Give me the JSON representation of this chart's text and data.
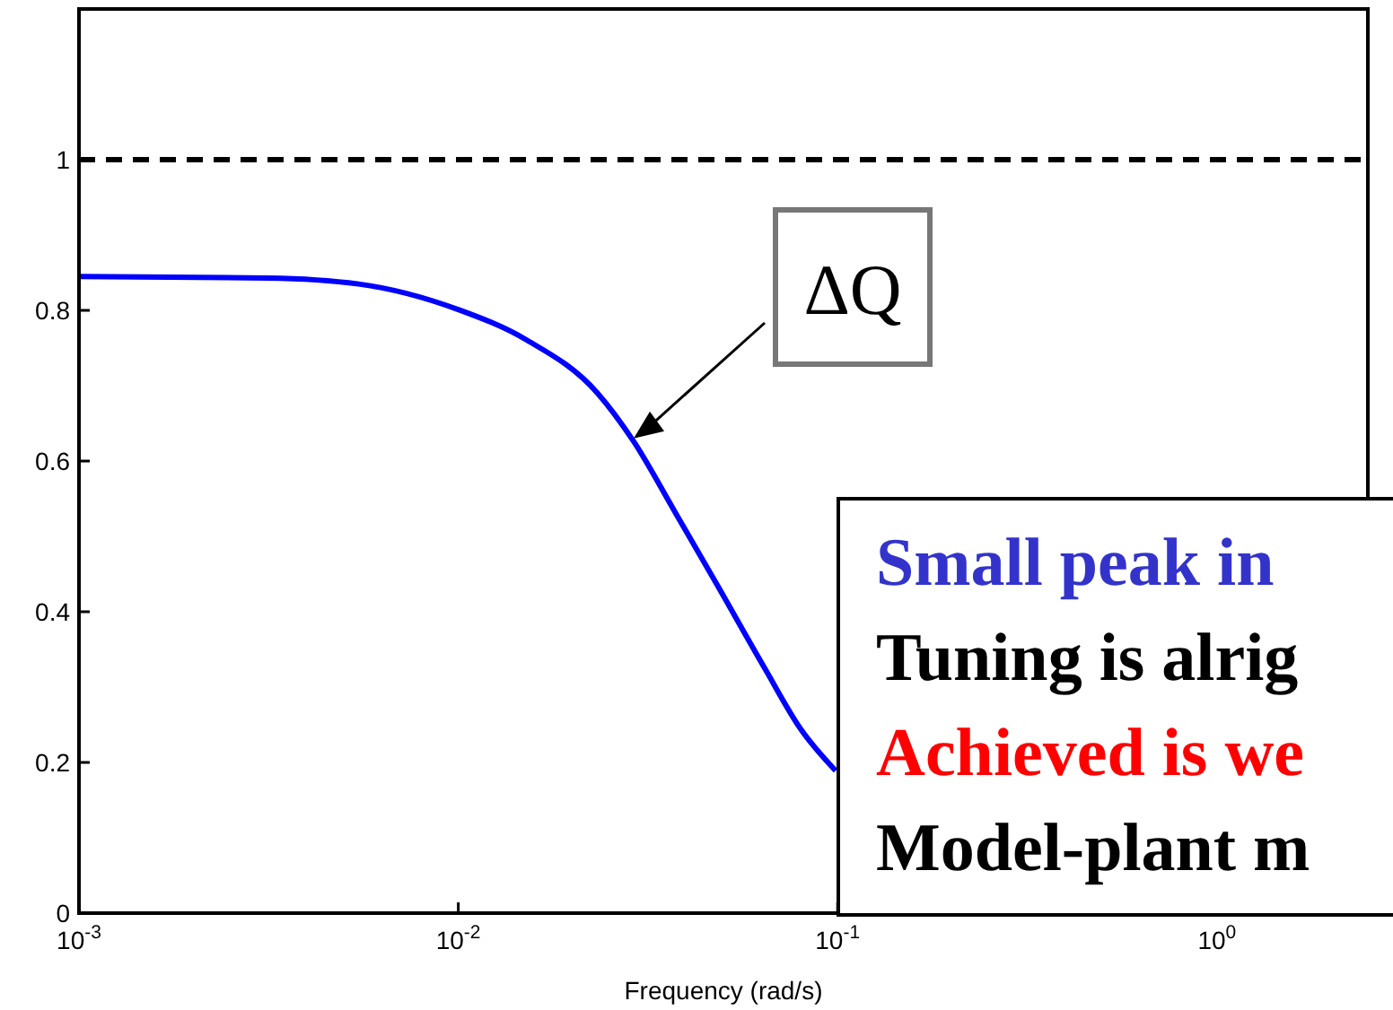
{
  "chart_data": {
    "type": "line",
    "xlabel": "Frequency (rad/s)",
    "log": "x",
    "xlim": [
      0.001,
      2.5
    ],
    "xticks": [
      {
        "value": 0.001,
        "label": "10$^{-3}$"
      },
      {
        "value": 0.01,
        "label": "10$^{-2}$"
      },
      {
        "value": 0.1,
        "label": "10$^{-1}$"
      },
      {
        "value": 1,
        "label": "10$^{0}$"
      }
    ],
    "ylim": [
      0,
      1.2
    ],
    "yticks": [
      0,
      0.2,
      0.4,
      0.6,
      0.8,
      1
    ],
    "grid": false,
    "series": [
      {
        "color": "#0000ff",
        "x": [
          0.001,
          0.00316,
          0.00546,
          0.01,
          0.0151,
          0.0233,
          0.029,
          0.0374,
          0.0482,
          0.0644,
          0.08,
          0.0988
        ],
        "values": [
          0.845,
          0.843,
          0.835,
          0.801,
          0.761,
          0.69,
          0.626,
          0.531,
          0.435,
          0.324,
          0.244,
          0.189
        ]
      }
    ],
    "ref_lines": [
      {
        "axis": "y",
        "value": 1,
        "color": "#000000",
        "line_style": "dashed"
      }
    ],
    "annotations": [
      {
        "text": "ΔQ",
        "x": 0.029,
        "y": 0.63
      },
      "Small peak in",
      "Tuning is alrig",
      "Achieved is we",
      "Model-plant m"
    ]
  }
}
